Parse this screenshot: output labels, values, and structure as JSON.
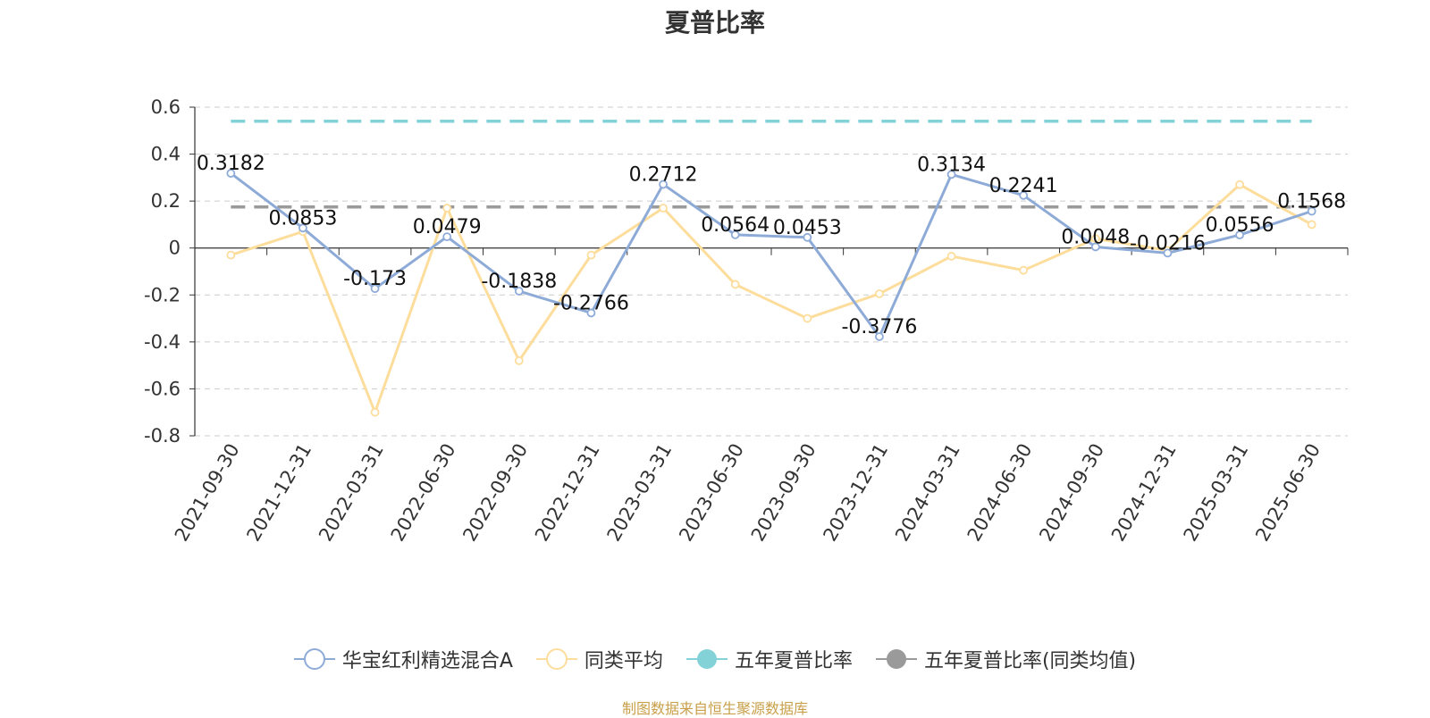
{
  "chart_data": {
    "type": "line",
    "title": "夏普比率",
    "categories": [
      "2021-09-30",
      "2021-12-31",
      "2022-03-31",
      "2022-06-30",
      "2022-09-30",
      "2022-12-31",
      "2023-03-31",
      "2023-06-30",
      "2023-09-30",
      "2023-12-31",
      "2024-03-31",
      "2024-06-30",
      "2024-09-30",
      "2024-12-31",
      "2025-03-31",
      "2025-06-30"
    ],
    "ylim": [
      -0.8,
      0.6
    ],
    "yticks": [
      "0.6",
      "0.4",
      "0.2",
      "0",
      "-0.2",
      "-0.4",
      "-0.6",
      "-0.8"
    ],
    "ytick_values": [
      0.6,
      0.4,
      0.2,
      0,
      -0.2,
      -0.4,
      -0.6,
      -0.8
    ],
    "grid": true,
    "legend_position": "bottom",
    "series": [
      {
        "name": "华宝红利精选混合A",
        "color": "#8eabd8",
        "show_labels": true,
        "labels": [
          "0.3182",
          "0.0853",
          "-0.173",
          "0.0479",
          "-0.1838",
          "-0.2766",
          "0.2712",
          "0.0564",
          "0.0453",
          "-0.3776",
          "0.3134",
          "0.2241",
          "0.0048",
          "-0.0216",
          "0.0556",
          "0.1568"
        ],
        "values": [
          0.3182,
          0.0853,
          -0.173,
          0.0479,
          -0.1838,
          -0.2766,
          0.2712,
          0.0564,
          0.0453,
          -0.3776,
          0.3134,
          0.2241,
          0.0048,
          -0.0216,
          0.0556,
          0.1568
        ]
      },
      {
        "name": "同类平均",
        "color": "#fddd9c",
        "show_labels": false,
        "values": [
          -0.03,
          0.07,
          -0.7,
          0.17,
          -0.48,
          -0.03,
          0.17,
          -0.155,
          -0.3,
          -0.195,
          -0.035,
          -0.095,
          0.04,
          -0.01,
          0.27,
          0.1
        ]
      },
      {
        "name": "五年夏普比率",
        "color": "#83d2d8",
        "type": "reference",
        "value": 0.54
      },
      {
        "name": "五年夏普比率(同类均值)",
        "color": "#9a9a9a",
        "type": "reference",
        "value": 0.175
      }
    ]
  },
  "source_note": "制图数据来自恒生聚源数据库"
}
